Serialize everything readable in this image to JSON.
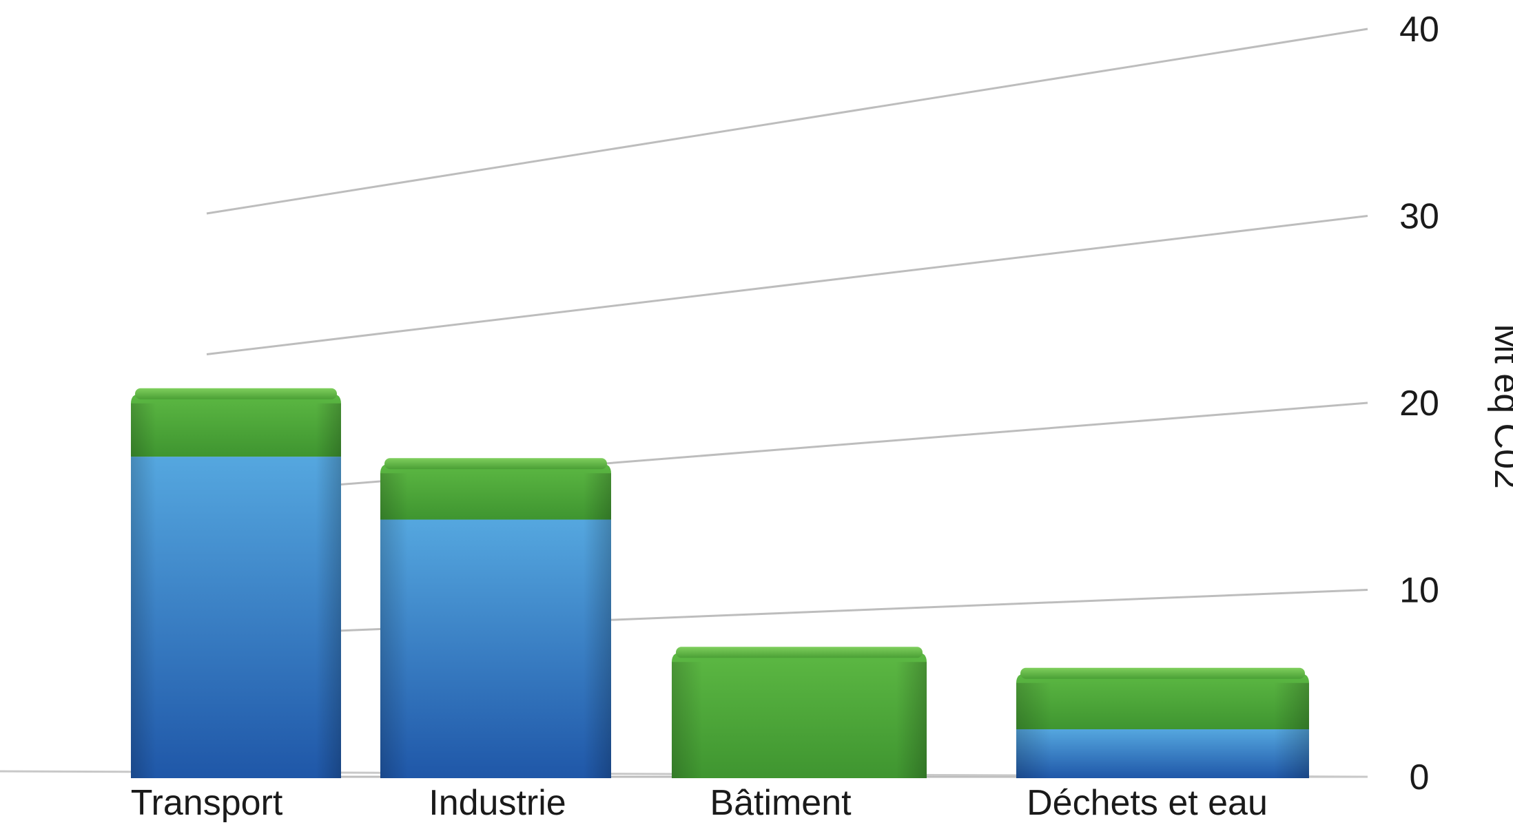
{
  "chart_data": {
    "type": "bar",
    "stacked": true,
    "perspective_3d": true,
    "categories": [
      "Transport",
      "Industrie",
      "Bâtiment",
      "Déchets et eau"
    ],
    "series": [
      {
        "color": "#3a86d0",
        "values": [
          23,
          18.5,
          0,
          3.5
        ]
      },
      {
        "color": "#4fa63a",
        "values": [
          4.5,
          4,
          9,
          4
        ]
      }
    ],
    "ylabel": "Mt eq C02",
    "yticks": [
      0,
      10,
      20,
      30,
      40
    ],
    "ylim": [
      0,
      40
    ],
    "grid": true,
    "axis_position": "right"
  }
}
